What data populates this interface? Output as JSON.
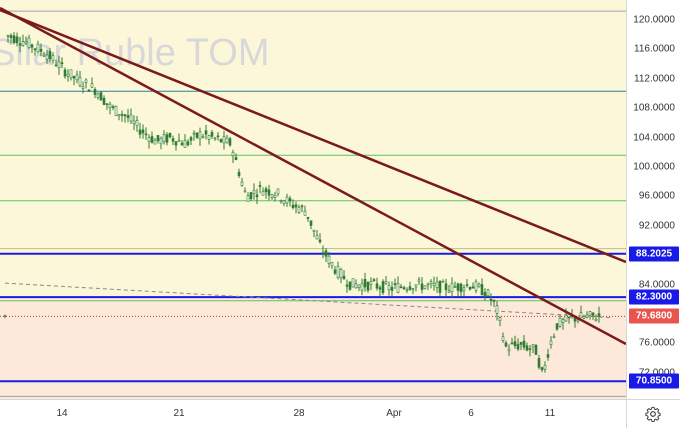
{
  "watermark": "Silar Ruble TOM",
  "y_axis": {
    "ticks": [
      "120.0000",
      "116.0000",
      "112.0000",
      "108.0000",
      "104.0000",
      "100.0000",
      "96.0000",
      "92.0000",
      "84.0000",
      "76.0000",
      "72.0000"
    ],
    "tick_values": [
      120,
      116,
      112,
      108,
      104,
      100,
      96,
      92,
      84,
      76,
      72
    ]
  },
  "x_axis": {
    "ticks": [
      "14",
      "21",
      "28",
      "Apr",
      "6",
      "11"
    ]
  },
  "price_badges": [
    {
      "label": "88.2025",
      "value": 88.2025,
      "color": "#1a1ae6"
    },
    {
      "label": "82.3000",
      "value": 82.3,
      "color": "#1a1ae6"
    },
    {
      "label": "79.6800",
      "value": 79.68,
      "color": "#e8554f"
    },
    {
      "label": "70.8500",
      "value": 70.85,
      "color": "#1a1ae6"
    }
  ],
  "colors": {
    "zone_upper": "#fdf7d9",
    "zone_lower": "#fde9da",
    "candle": "#2e7d32",
    "trendline": "#7a1a1a",
    "blue_level": "#1a1ae6",
    "teal_level": "#2b7fa3",
    "green_level": "#5cc45c"
  },
  "icons": {
    "settings": "gear-icon"
  }
}
